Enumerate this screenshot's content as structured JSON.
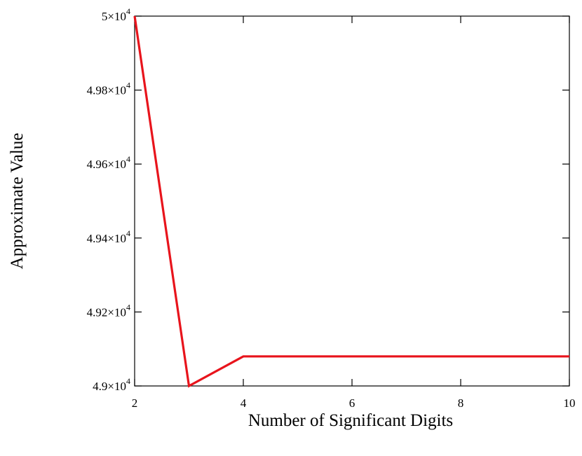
{
  "chart_data": {
    "type": "line",
    "title": "",
    "xlabel": "Number of Significant Digits",
    "ylabel": "Approximate Value",
    "xlim": [
      2,
      10
    ],
    "ylim": [
      49000,
      50000
    ],
    "x_ticks": [
      {
        "value": 2,
        "label": "2"
      },
      {
        "value": 4,
        "label": "4"
      },
      {
        "value": 6,
        "label": "6"
      },
      {
        "value": 8,
        "label": "8"
      },
      {
        "value": 10,
        "label": "10"
      }
    ],
    "y_ticks": [
      {
        "value": 49000,
        "mantissa": "4.9×10",
        "exponent": "4"
      },
      {
        "value": 49200,
        "mantissa": "4.92×10",
        "exponent": "4"
      },
      {
        "value": 49400,
        "mantissa": "4.94×10",
        "exponent": "4"
      },
      {
        "value": 49600,
        "mantissa": "4.96×10",
        "exponent": "4"
      },
      {
        "value": 49800,
        "mantissa": "4.98×10",
        "exponent": "4"
      },
      {
        "value": 50000,
        "mantissa": "5×10",
        "exponent": "4"
      }
    ],
    "series": [
      {
        "color": "#e8141c",
        "x": [
          2,
          3,
          4,
          5,
          6,
          7,
          8,
          9,
          10
        ],
        "y": [
          50000,
          49000,
          49080,
          49080,
          49080,
          49080,
          49080,
          49080,
          49080
        ]
      }
    ],
    "grid": false,
    "legend": "none"
  }
}
